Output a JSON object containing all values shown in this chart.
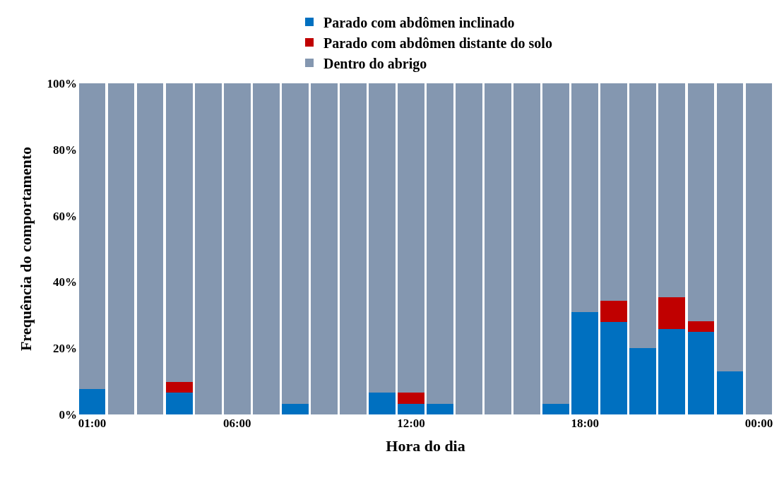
{
  "chart_data": {
    "type": "bar",
    "stacked": true,
    "xlabel": "Hora do dia",
    "ylabel": "Frequência do comportamento",
    "categories": [
      "01:00",
      null,
      null,
      null,
      null,
      "06:00",
      null,
      null,
      null,
      null,
      null,
      "12:00",
      null,
      null,
      null,
      null,
      null,
      "18:00",
      null,
      null,
      null,
      null,
      null,
      "00:00"
    ],
    "series": [
      {
        "name": "Parado com abdômen inclinado",
        "color": "#0070c0",
        "values": [
          7.6,
          0,
          0,
          6.6,
          0,
          0,
          0,
          3.3,
          0,
          0,
          6.6,
          3.3,
          3.3,
          0,
          0,
          0,
          3.3,
          31,
          28,
          20,
          25.7,
          25,
          13.1,
          0
        ]
      },
      {
        "name": "Parado com abdômen distante do solo",
        "color": "#c00000",
        "values": [
          0,
          0,
          0,
          3.3,
          0,
          0,
          0,
          0,
          0,
          0,
          0,
          3.3,
          0,
          0,
          0,
          0,
          0,
          0,
          6.3,
          0,
          9.6,
          3.1,
          0,
          0
        ]
      },
      {
        "name": "Dentro do abrigo",
        "color": "#8497b0",
        "values": [
          92.4,
          100,
          100,
          90.1,
          100,
          100,
          100,
          96.7,
          100,
          100,
          93.4,
          93.4,
          96.7,
          100,
          100,
          100,
          96.7,
          69,
          65.7,
          80,
          64.7,
          71.9,
          86.9,
          100
        ]
      }
    ],
    "ylim": [
      0,
      100
    ],
    "yticks": [
      {
        "value": 0,
        "label": "0%"
      },
      {
        "value": 20,
        "label": "20%"
      },
      {
        "value": 40,
        "label": "40%"
      },
      {
        "value": 60,
        "label": "60%"
      },
      {
        "value": 80,
        "label": "80%"
      },
      {
        "value": 100,
        "label": "100%"
      }
    ],
    "legend": "top"
  }
}
